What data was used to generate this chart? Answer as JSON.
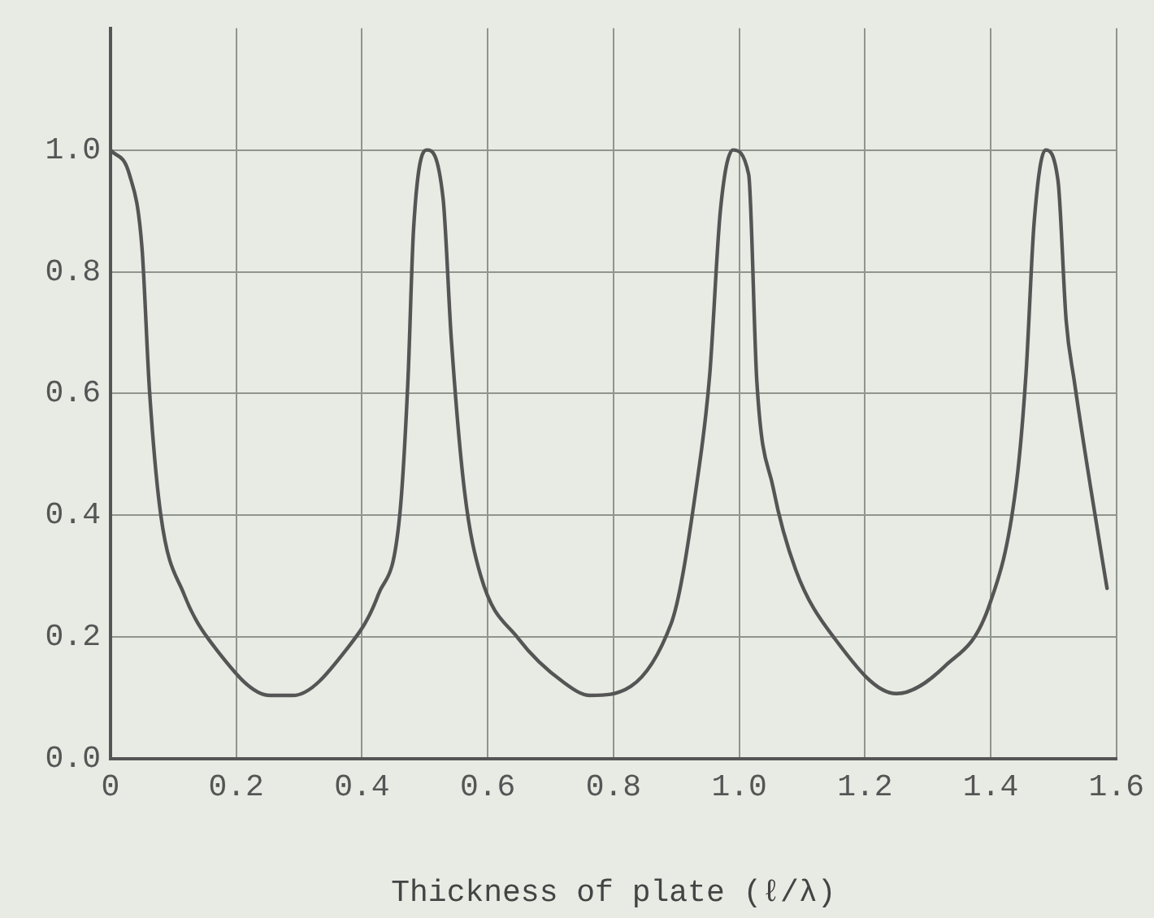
{
  "chart_data": {
    "type": "line",
    "xlabel": "Thickness of plate (ℓ/λ)",
    "x": [
      0,
      0.03,
      0.05,
      0.062,
      0.08,
      0.117,
      0.168,
      0.254,
      0.29,
      0.374,
      0.426,
      0.46,
      0.473,
      0.482,
      0.503,
      0.529,
      0.542,
      0.563,
      0.589,
      0.649,
      0.72,
      0.763,
      0.892,
      0.935,
      0.953,
      0.97,
      0.99,
      1.015,
      1.028,
      1.054,
      1.09,
      1.15,
      1.25,
      1.327,
      1.397,
      1.44,
      1.456,
      1.469,
      1.487,
      1.507,
      1.52,
      1.533,
      1.559,
      1.585
    ],
    "series": [
      {
        "color": "#555555",
        "values": [
          1.0,
          0.96,
          0.84,
          0.605,
          0.4,
          0.27,
          0.18,
          0.104,
          0.104,
          0.178,
          0.27,
          0.4,
          0.62,
          0.87,
          1.0,
          0.92,
          0.69,
          0.44,
          0.3,
          0.197,
          0.126,
          0.104,
          0.223,
          0.47,
          0.63,
          0.9,
          1.0,
          0.96,
          0.62,
          0.445,
          0.31,
          0.2,
          0.107,
          0.152,
          0.25,
          0.445,
          0.63,
          0.88,
          1.0,
          0.95,
          0.72,
          0.62,
          0.445,
          0.28
        ]
      }
    ],
    "xlim": [
      0,
      1.6
    ],
    "xticks": [
      0,
      0.2,
      0.4,
      0.6,
      0.8,
      {
        "value": 1,
        "label": "1.0"
      },
      1.2,
      1.4,
      1.6
    ],
    "ylim": [
      0,
      1.2
    ],
    "yticks": [
      {
        "value": 0,
        "label": "0.0"
      },
      0.2,
      0.4,
      0.6,
      0.8,
      {
        "value": 1,
        "label": "1.0"
      }
    ],
    "grid": true,
    "legend": false,
    "marker": "none",
    "line_style": "solid"
  }
}
